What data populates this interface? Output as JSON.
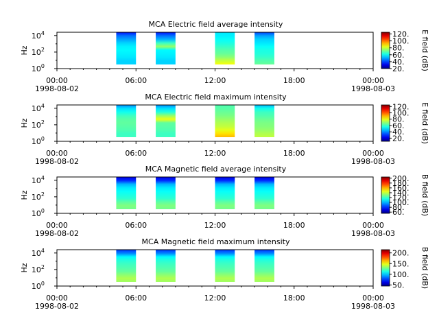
{
  "panel_count": 4,
  "time_ticks": [
    "00:00",
    "06:00",
    "12:00",
    "18:00",
    "00:00"
  ],
  "date_ticks": [
    "1998-08-02",
    "",
    "",
    "",
    "1998-08-03"
  ],
  "y_axis_label": "Hz",
  "y_tick_labels": [
    {
      "base": "10",
      "exp": "0"
    },
    {
      "base": "10",
      "exp": "2"
    },
    {
      "base": "10",
      "exp": "4"
    }
  ],
  "chart_data": [
    {
      "type": "heatmap",
      "title": "MCA  Electric field average intensity",
      "xlabel": "",
      "ylabel": "Hz",
      "x_range_hours": [
        0,
        24
      ],
      "y_range_log10_hz": [
        0,
        4.4
      ],
      "y_scale": "log",
      "colorbar": {
        "label": "E field (dB)",
        "range": [
          20,
          125
        ],
        "ticks": [
          20,
          40,
          60,
          80,
          100,
          120
        ],
        "tick_labels": [
          "20.",
          "40.",
          "60.",
          "80.",
          "100.",
          "120."
        ]
      },
      "blocks_hours": [
        [
          4.5,
          6.0
        ],
        [
          7.5,
          9.0
        ],
        [
          12.0,
          13.5
        ],
        [
          15.0,
          16.5
        ]
      ],
      "y_extent_log10_hz": [
        0.5,
        4.4
      ],
      "profiles": [
        {
          "name": "block-1",
          "values_db": [
            55,
            55,
            57,
            58,
            59,
            58,
            55,
            50,
            45,
            35
          ]
        },
        {
          "name": "block-2",
          "values_db": [
            55,
            55,
            57,
            58,
            59,
            75,
            65,
            52,
            45,
            35
          ]
        },
        {
          "name": "block-3",
          "values_db": [
            85,
            80,
            74,
            70,
            68,
            65,
            62,
            60,
            58,
            57
          ]
        },
        {
          "name": "block-4",
          "values_db": [
            70,
            68,
            65,
            63,
            62,
            60,
            57,
            55,
            50,
            40
          ]
        }
      ]
    },
    {
      "type": "heatmap",
      "title": "MCA  Electric field maximum intensity",
      "xlabel": "",
      "ylabel": "Hz",
      "x_range_hours": [
        0,
        24
      ],
      "y_range_log10_hz": [
        0,
        4.4
      ],
      "y_scale": "log",
      "colorbar": {
        "label": "E field (dB)",
        "range": [
          10,
          125
        ],
        "ticks": [
          20,
          40,
          60,
          80,
          100,
          120
        ],
        "tick_labels": [
          "20.",
          "40.",
          "60.",
          "80.",
          "100.",
          "120."
        ]
      },
      "blocks_hours": [
        [
          4.5,
          6.0
        ],
        [
          7.5,
          9.0
        ],
        [
          12.0,
          13.5
        ],
        [
          15.0,
          16.5
        ]
      ],
      "y_extent_log10_hz": [
        0.5,
        4.4
      ],
      "profiles": [
        {
          "name": "block-1",
          "values_db": [
            60,
            60,
            62,
            63,
            64,
            63,
            60,
            55,
            50,
            40
          ]
        },
        {
          "name": "block-2",
          "values_db": [
            60,
            60,
            62,
            63,
            64,
            80,
            70,
            57,
            50,
            40
          ]
        },
        {
          "name": "block-3",
          "values_db": [
            90,
            85,
            79,
            75,
            73,
            70,
            67,
            65,
            63,
            62
          ]
        },
        {
          "name": "block-4",
          "values_db": [
            75,
            73,
            70,
            68,
            67,
            65,
            62,
            60,
            55,
            45
          ]
        }
      ]
    },
    {
      "type": "heatmap",
      "title": "MCA  Magnetic field average intensity",
      "xlabel": "",
      "ylabel": "Hz",
      "x_range_hours": [
        0,
        24
      ],
      "y_range_log10_hz": [
        0,
        4.4
      ],
      "y_scale": "log",
      "colorbar": {
        "label": "B field (dB)",
        "range": [
          55,
          205
        ],
        "ticks": [
          60,
          80,
          100,
          120,
          140,
          160,
          180,
          200
        ],
        "tick_labels": [
          "60.",
          "80.",
          "100.",
          "120.",
          "140.",
          "160.",
          "180.",
          "200."
        ]
      },
      "blocks_hours": [
        [
          4.5,
          6.0
        ],
        [
          7.5,
          9.0
        ],
        [
          12.0,
          13.5
        ],
        [
          15.0,
          16.5
        ]
      ],
      "y_extent_log10_hz": [
        0.5,
        4.4
      ],
      "profiles": [
        {
          "name": "block-1",
          "values_db": [
            128,
            130,
            125,
            118,
            115,
            112,
            108,
            100,
            80,
            70
          ]
        },
        {
          "name": "block-2",
          "values_db": [
            128,
            130,
            125,
            118,
            115,
            112,
            108,
            100,
            80,
            70
          ]
        },
        {
          "name": "block-3",
          "values_db": [
            128,
            130,
            125,
            118,
            115,
            112,
            108,
            100,
            80,
            70
          ]
        },
        {
          "name": "block-4",
          "values_db": [
            128,
            130,
            125,
            118,
            115,
            112,
            108,
            100,
            80,
            70
          ]
        }
      ]
    },
    {
      "type": "heatmap",
      "title": "MCA  Magnetic field maximum intensity",
      "xlabel": "",
      "ylabel": "Hz",
      "x_range_hours": [
        0,
        24
      ],
      "y_range_log10_hz": [
        0,
        4.4
      ],
      "y_scale": "log",
      "colorbar": {
        "label": "B field (dB)",
        "range": [
          45,
          215
        ],
        "ticks": [
          50,
          100,
          150,
          200
        ],
        "tick_labels": [
          "50.",
          "100.",
          "150.",
          "200."
        ]
      },
      "blocks_hours": [
        [
          4.5,
          6.0
        ],
        [
          7.5,
          9.0
        ],
        [
          12.0,
          13.5
        ],
        [
          15.0,
          16.5
        ]
      ],
      "y_extent_log10_hz": [
        0.5,
        4.4
      ],
      "profiles": [
        {
          "name": "block-1",
          "values_db": [
            135,
            138,
            132,
            125,
            122,
            119,
            115,
            108,
            88,
            75
          ]
        },
        {
          "name": "block-2",
          "values_db": [
            135,
            138,
            132,
            125,
            122,
            119,
            115,
            108,
            88,
            75
          ]
        },
        {
          "name": "block-3",
          "values_db": [
            135,
            138,
            132,
            125,
            122,
            119,
            115,
            108,
            88,
            75
          ]
        },
        {
          "name": "block-4",
          "values_db": [
            135,
            138,
            132,
            125,
            122,
            119,
            115,
            108,
            88,
            75
          ]
        }
      ]
    }
  ]
}
